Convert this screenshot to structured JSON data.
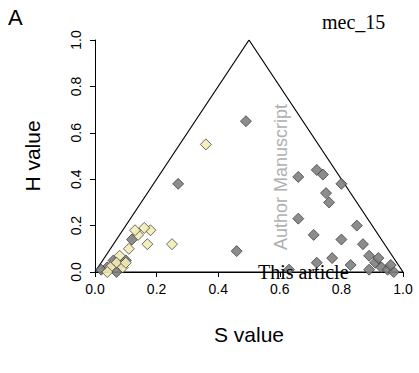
{
  "chart_data": {
    "type": "scatter",
    "xlabel": "S value",
    "ylabel": "H value",
    "annotations": [
      "A",
      "mec_15",
      "Author Manuscript",
      "This article"
    ],
    "xlim": [
      0,
      1
    ],
    "ylim": [
      0,
      1
    ],
    "xticks": [
      {
        "value": 0,
        "label": "0.0"
      },
      {
        "value": 0.2,
        "label": "0.2"
      },
      {
        "value": 0.4,
        "label": "0.4"
      },
      {
        "value": 0.6,
        "label": "0.6"
      },
      {
        "value": 0.8,
        "label": "0.8"
      },
      {
        "value": 1,
        "label": "1.0"
      }
    ],
    "yticks": [
      {
        "value": 0,
        "label": "0.0"
      },
      {
        "value": 0.2,
        "label": "0.2"
      },
      {
        "value": 0.4,
        "label": "0.4"
      },
      {
        "value": 0.6,
        "label": "0.6"
      },
      {
        "value": 0.8,
        "label": "0.8"
      },
      {
        "value": 1,
        "label": "1.0"
      }
    ],
    "grid": false,
    "series": [
      {
        "type": "line",
        "color": "#000000",
        "line_style": "solid",
        "x": [
          0,
          0.5,
          1,
          0
        ],
        "y": [
          0,
          1,
          0,
          0
        ]
      },
      {
        "type": "scatter",
        "color": "#808080",
        "marker": "diamond",
        "x": [
          0.49,
          0.27,
          0.46,
          0.66,
          0.72,
          0.74,
          0.75,
          0.76,
          0.8,
          0.66,
          0.71,
          0.8,
          0.85,
          0.87,
          0.89,
          0.83,
          0.91,
          0.93,
          0.95,
          0.97,
          0.96,
          0.92,
          0.72,
          0.77,
          0.89,
          0.63,
          0.04,
          0.06,
          0.08,
          0.1,
          0.12,
          0.07,
          0.02
        ],
        "y": [
          0.65,
          0.38,
          0.09,
          0.41,
          0.44,
          0.42,
          0.34,
          0.3,
          0.38,
          0.23,
          0.16,
          0.14,
          0.2,
          0.12,
          0.07,
          0.03,
          0.04,
          0.02,
          0.01,
          0.0,
          0.03,
          0.06,
          0.04,
          0.06,
          0.01,
          0.01,
          0.02,
          0.05,
          0.03,
          0.05,
          0.14,
          0.0,
          0.01
        ]
      },
      {
        "type": "scatter",
        "color": "#f3ebb5",
        "marker": "diamond",
        "x": [
          0.36,
          0.25,
          0.18,
          0.17,
          0.16,
          0.14,
          0.11,
          0.08,
          0.07,
          0.05,
          0.04,
          0.09,
          0.1,
          0.13
        ],
        "y": [
          0.55,
          0.12,
          0.18,
          0.12,
          0.19,
          0.16,
          0.1,
          0.07,
          0.04,
          0.02,
          0.0,
          0.02,
          0.04,
          0.18
        ]
      }
    ]
  }
}
